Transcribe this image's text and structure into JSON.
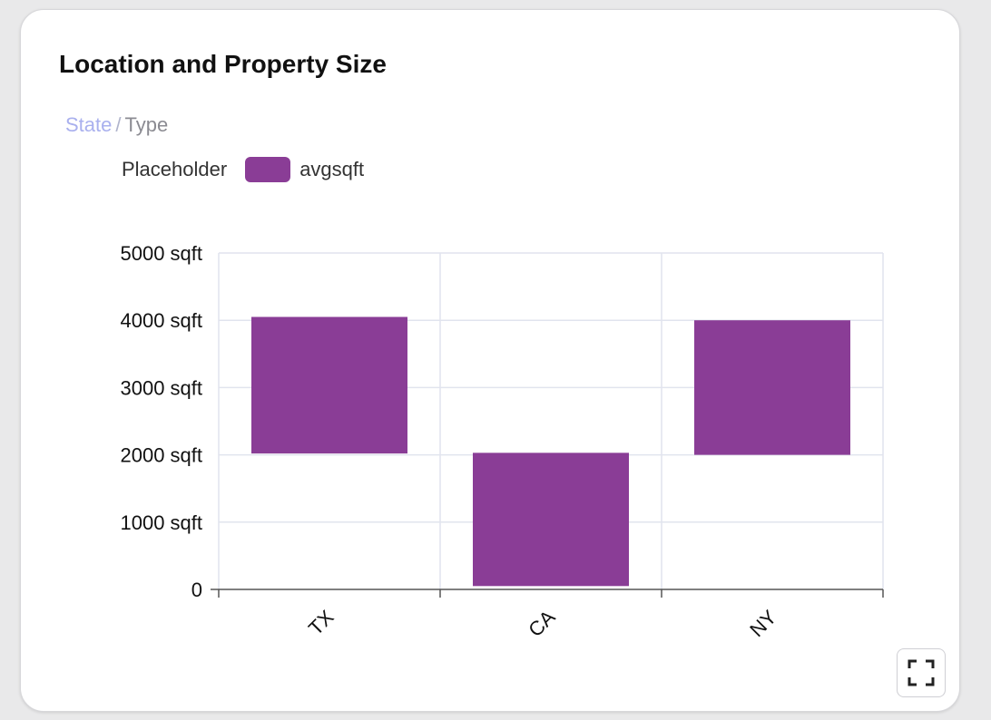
{
  "card": {
    "title": "Location and Property Size"
  },
  "breadcrumb": {
    "link_label": "State",
    "separator": "/",
    "current_label": "Type"
  },
  "legend": {
    "placeholder_label": "Placeholder",
    "series_label": "avgsqft",
    "series_color": "#8a3d96"
  },
  "expand_button": {
    "icon": "expand-icon"
  },
  "colors": {
    "bar": "#8a3d96",
    "grid": "#e1e4ee",
    "axis": "#555555"
  },
  "chart_data": {
    "type": "bar",
    "categories": [
      "TX",
      "CA",
      "NY"
    ],
    "series": [
      {
        "name": "avgsqft",
        "ranges": [
          [
            2020,
            4050
          ],
          [
            50,
            2030
          ],
          [
            2000,
            4000
          ]
        ]
      }
    ],
    "ylim": [
      0,
      5000
    ],
    "y_ticks": [
      0,
      1000,
      2000,
      3000,
      4000,
      5000
    ],
    "y_tick_labels": [
      "0",
      "1000 sqft",
      "2000 sqft",
      "3000 sqft",
      "4000 sqft",
      "5000 sqft"
    ],
    "y_unit": "sqft",
    "grid": true,
    "x_label_rotation": -45,
    "legend_position": "top-left"
  }
}
